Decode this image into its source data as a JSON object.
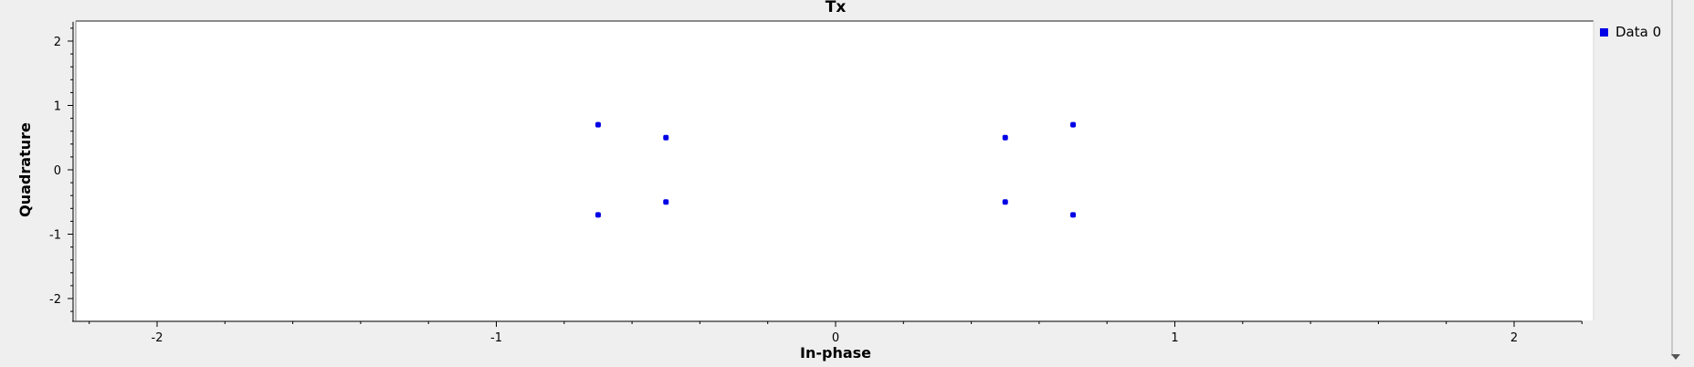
{
  "chart_data": {
    "type": "scatter",
    "title": "Tx",
    "xlabel": "In-phase",
    "ylabel": "Quadrature",
    "xlim": [
      -2.25,
      2.2
    ],
    "ylim": [
      -2.35,
      2.3
    ],
    "xticks": [
      -2,
      -1,
      0,
      1,
      2
    ],
    "yticks": [
      -2,
      -1,
      0,
      1,
      2
    ],
    "grid": false,
    "legend_position": "top-right",
    "series": [
      {
        "name": "Data 0",
        "color": "#0000e6",
        "points": [
          {
            "x": -0.7,
            "y": 0.7
          },
          {
            "x": -0.5,
            "y": 0.5
          },
          {
            "x": -0.7,
            "y": -0.7
          },
          {
            "x": -0.5,
            "y": -0.5
          },
          {
            "x": 0.5,
            "y": 0.5
          },
          {
            "x": 0.7,
            "y": 0.7
          },
          {
            "x": 0.5,
            "y": -0.5
          },
          {
            "x": 0.7,
            "y": -0.7
          }
        ]
      }
    ]
  }
}
